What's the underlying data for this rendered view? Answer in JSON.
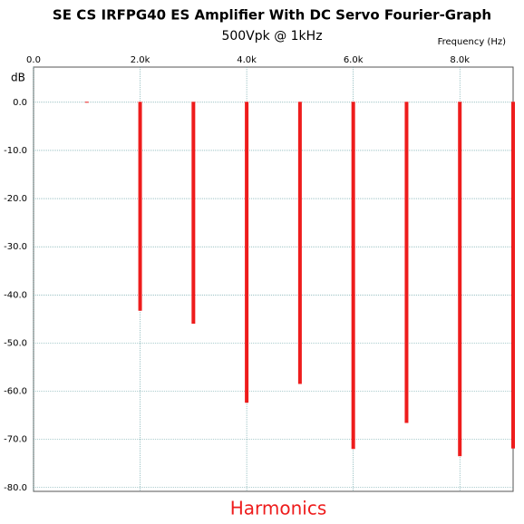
{
  "chart_data": {
    "type": "bar",
    "title": "SE CS IRFPG40 ES Amplifier With DC Servo Fourier-Graph",
    "subtitle": "500Vpk @ 1kHz",
    "x_label": "Frequency   (Hz)",
    "y_label": "dB",
    "annotation": "Harmonics",
    "x": [
      1000,
      2000,
      3000,
      4000,
      5000,
      6000,
      7000,
      8000,
      9000
    ],
    "series": [
      {
        "name": "Harmonics",
        "color": "#ee1c1c",
        "values": [
          0,
          -43.2,
          -45.9,
          -62.3,
          -58.4,
          -71.9,
          -66.5,
          -73.4,
          -71.8
        ]
      }
    ],
    "xlim": [
      0,
      9000
    ],
    "xticks": [
      {
        "value": 0,
        "label": "0.0"
      },
      {
        "value": 2000,
        "label": "2.0k"
      },
      {
        "value": 4000,
        "label": "4.0k"
      },
      {
        "value": 6000,
        "label": "6.0k"
      },
      {
        "value": 8000,
        "label": "8.0k"
      }
    ],
    "ylim": [
      -80.8,
      7.3
    ],
    "yticks": [
      {
        "value": 0,
        "label": "0.0"
      },
      {
        "value": -10,
        "label": "-10.0"
      },
      {
        "value": -20,
        "label": "-20.0"
      },
      {
        "value": -30,
        "label": "-30.0"
      },
      {
        "value": -40,
        "label": "-40.0"
      },
      {
        "value": -50,
        "label": "-50.0"
      },
      {
        "value": -60,
        "label": "-60.0"
      },
      {
        "value": -70,
        "label": "-70.0"
      },
      {
        "value": -80,
        "label": "-80.0"
      }
    ],
    "grid": true,
    "grid_color": "#5f9ea0"
  }
}
